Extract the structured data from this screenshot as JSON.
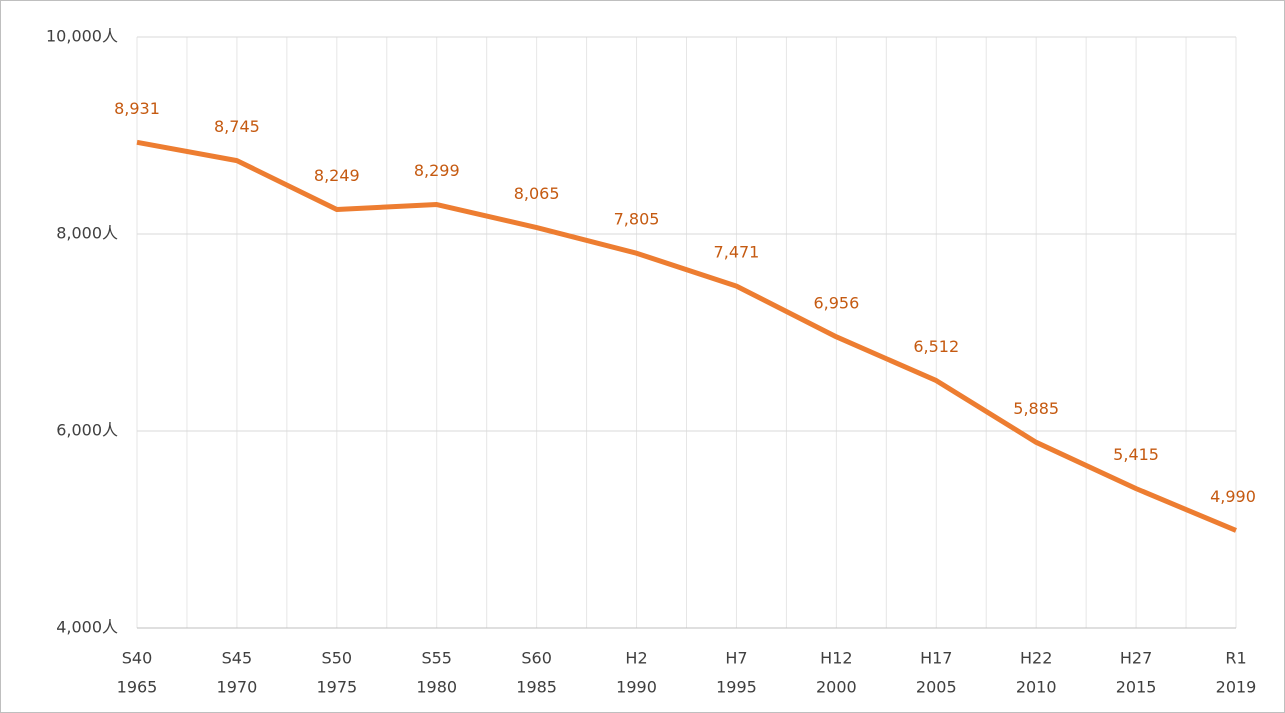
{
  "chart_data": {
    "type": "line",
    "categories": [
      [
        "S40",
        "1965"
      ],
      [
        "S45",
        "1970"
      ],
      [
        "S50",
        "1975"
      ],
      [
        "S55",
        "1980"
      ],
      [
        "S60",
        "1985"
      ],
      [
        "H2",
        "1990"
      ],
      [
        "H7",
        "1995"
      ],
      [
        "H12",
        "2000"
      ],
      [
        "H17",
        "2005"
      ],
      [
        "H22",
        "2010"
      ],
      [
        "H27",
        "2015"
      ],
      [
        "R1",
        "2019"
      ]
    ],
    "values": [
      8931,
      8745,
      8249,
      8299,
      8065,
      7805,
      7471,
      6956,
      6512,
      5885,
      5415,
      4990
    ],
    "value_labels": [
      "8,931",
      "8,745",
      "8,249",
      "8,299",
      "8,065",
      "7,805",
      "7,471",
      "6,956",
      "6,512",
      "5,885",
      "5,415",
      "4,990"
    ],
    "color": "#ed7d31",
    "ylim": [
      4000,
      10000
    ],
    "yticks": [
      {
        "value": 4000,
        "label": "4,000人"
      },
      {
        "value": 6000,
        "label": "6,000人"
      },
      {
        "value": 8000,
        "label": "8,000人"
      },
      {
        "value": 10000,
        "label": "10,000人"
      }
    ],
    "grid": true
  }
}
